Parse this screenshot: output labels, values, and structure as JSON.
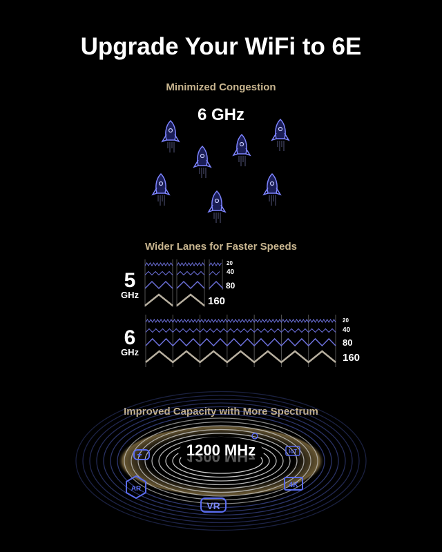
{
  "title": "Upgrade Your WiFi to 6E",
  "section1": {
    "heading": "Minimized Congestion",
    "band": "6 GHz",
    "rocket_count": 7,
    "icon": "rocket-icon"
  },
  "section2": {
    "heading": "Wider Lanes for Faster Speeds",
    "bands": [
      {
        "number": "5",
        "unit": "GHz",
        "channels": [
          "20",
          "40",
          "80",
          "160"
        ]
      },
      {
        "number": "6",
        "unit": "GHz",
        "channels": [
          "20",
          "40",
          "80",
          "160"
        ]
      }
    ]
  },
  "section3": {
    "heading": "Improved Capacity with More Spectrum",
    "capacity": "1200 MHz",
    "icons": [
      "gamepad-icon",
      "ar-icon",
      "vr-icon",
      "4k-icon",
      "iot-icon",
      "smart-device-icon"
    ],
    "icon_labels": {
      "ar": "AR",
      "vr": "VR",
      "k4": "4K",
      "iot": "IoT"
    }
  },
  "colors": {
    "accent_tan": "#c8b58f",
    "wave_blue": "#6b6fd8",
    "icon_blue": "#5a6cf0",
    "wave_160": "#b8b0a0"
  }
}
